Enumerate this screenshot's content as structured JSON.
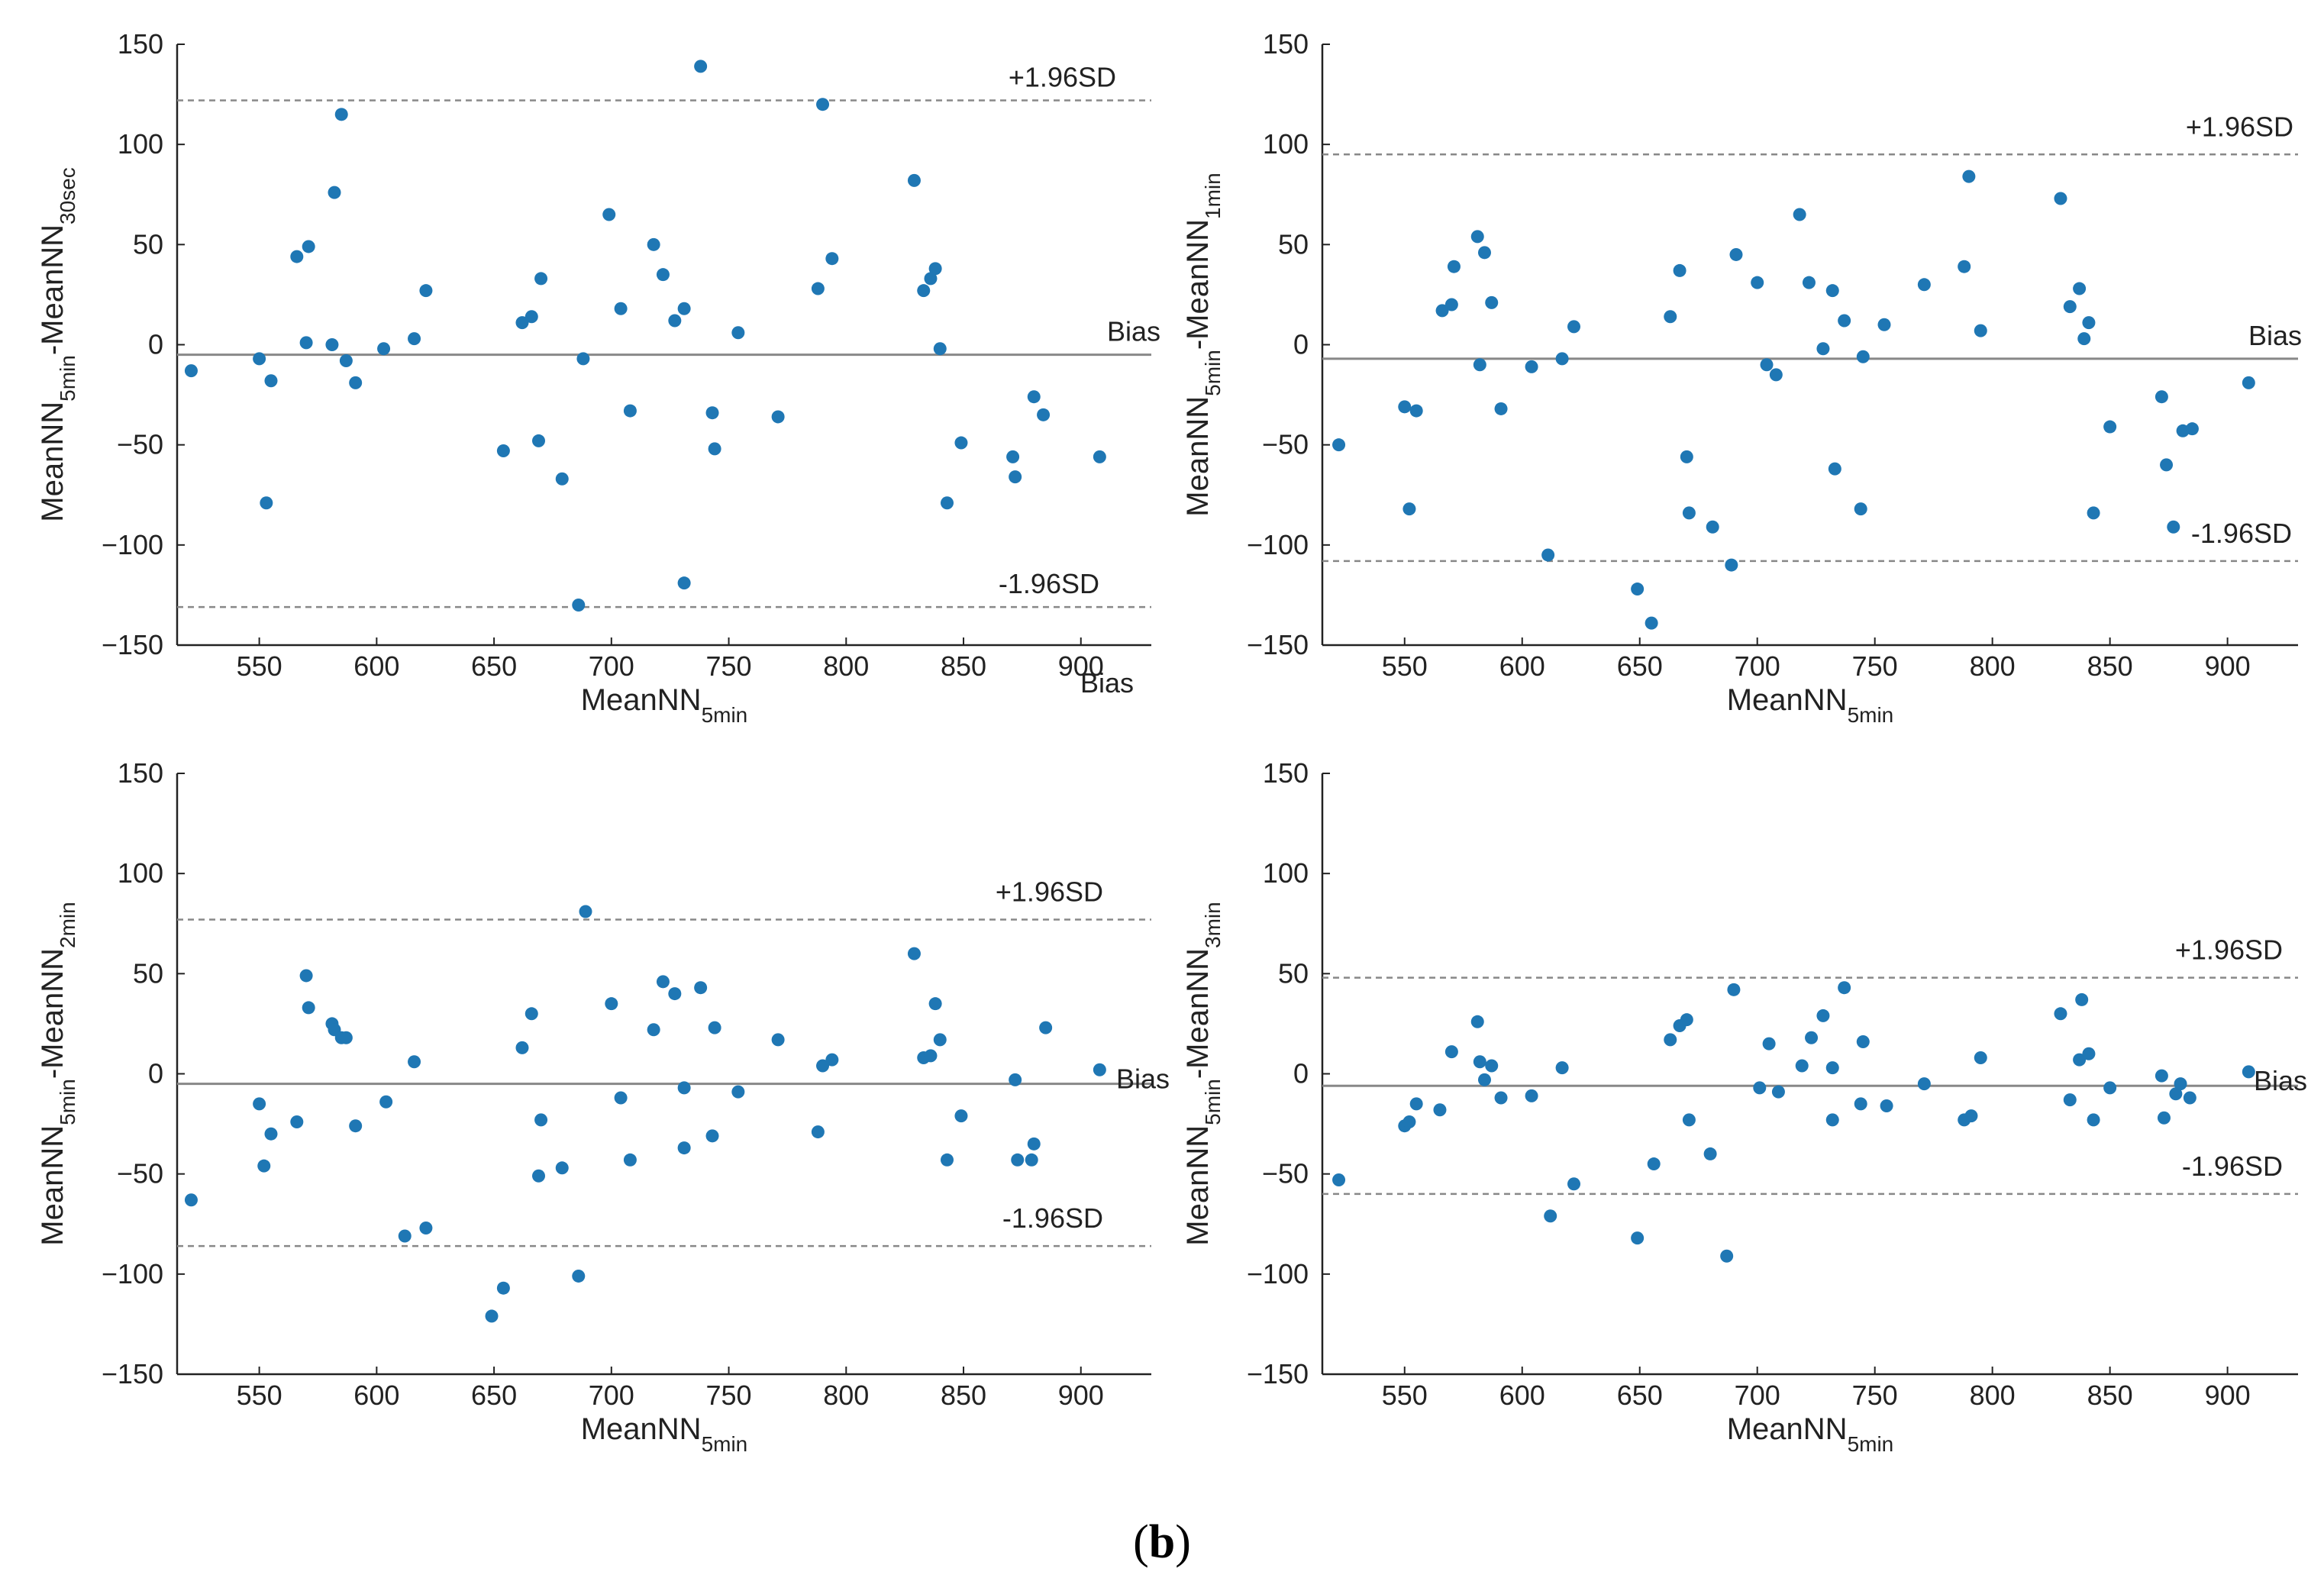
{
  "caption": {
    "open": "(",
    "letter": "b",
    "close": ")"
  },
  "colors": {
    "marker": "#1f77b4",
    "axis": "#222222",
    "bias_line": "#888888",
    "limit_line": "#888888"
  },
  "chart_data": [
    {
      "type": "scatter",
      "title": "",
      "xlabel": {
        "main": "MeanNN",
        "sub": "5min"
      },
      "ylabel": {
        "a": "MeanNN",
        "a_sub": "5min",
        "sep": "-",
        "b": "MeanNN",
        "b_sub": "30sec"
      },
      "xlim": [
        515,
        930
      ],
      "ylim": [
        -150,
        150
      ],
      "xticks": [
        "550",
        "600",
        "650",
        "700",
        "750",
        "800",
        "850",
        "900"
      ],
      "yticks": [
        "150",
        "100",
        "50",
        "0",
        "−50",
        "−100",
        "−150"
      ],
      "bias": -5,
      "upper": 122,
      "lower": -131,
      "upper_label": "+1.96SD",
      "lower_label": "-1.96SD",
      "bias_label": "Bias",
      "extra_label": "Bias",
      "points": [
        [
          521,
          -13
        ],
        [
          550,
          -7
        ],
        [
          553,
          -79
        ],
        [
          555,
          -18
        ],
        [
          566,
          44
        ],
        [
          570,
          1
        ],
        [
          571,
          49
        ],
        [
          581,
          0
        ],
        [
          582,
          76
        ],
        [
          585,
          115
        ],
        [
          587,
          -8
        ],
        [
          591,
          -19
        ],
        [
          603,
          -2
        ],
        [
          616,
          3
        ],
        [
          621,
          27
        ],
        [
          654,
          -53
        ],
        [
          662,
          11
        ],
        [
          666,
          14
        ],
        [
          669,
          -48
        ],
        [
          670,
          33
        ],
        [
          679,
          -67
        ],
        [
          686,
          -130
        ],
        [
          688,
          -7
        ],
        [
          699,
          65
        ],
        [
          704,
          18
        ],
        [
          708,
          -33
        ],
        [
          718,
          50
        ],
        [
          722,
          35
        ],
        [
          727,
          12
        ],
        [
          731,
          18
        ],
        [
          731,
          -119
        ],
        [
          738,
          139
        ],
        [
          743,
          -34
        ],
        [
          744,
          -52
        ],
        [
          754,
          6
        ],
        [
          771,
          -36
        ],
        [
          788,
          28
        ],
        [
          790,
          120
        ],
        [
          794,
          43
        ],
        [
          829,
          82
        ],
        [
          833,
          27
        ],
        [
          836,
          33
        ],
        [
          838,
          38
        ],
        [
          840,
          -2
        ],
        [
          843,
          -79
        ],
        [
          849,
          -49
        ],
        [
          871,
          -56
        ],
        [
          872,
          -66
        ],
        [
          880,
          -26
        ],
        [
          884,
          -35
        ],
        [
          908,
          -56
        ]
      ]
    },
    {
      "type": "scatter",
      "title": "",
      "xlabel": {
        "main": "MeanNN",
        "sub": "5min"
      },
      "ylabel": {
        "a": "MeanNN",
        "a_sub": "5min",
        "sep": "-",
        "b": "MeanNN",
        "b_sub": "1min"
      },
      "xlim": [
        515,
        930
      ],
      "ylim": [
        -150,
        150
      ],
      "xticks": [
        "550",
        "600",
        "650",
        "700",
        "750",
        "800",
        "850",
        "900"
      ],
      "yticks": [
        "150",
        "100",
        "50",
        "0",
        "−50",
        "−100",
        "−150"
      ],
      "bias": -7,
      "upper": 95,
      "lower": -108,
      "upper_label": "+1.96SD",
      "lower_label": "-1.96SD",
      "bias_label": "Bias",
      "points": [
        [
          522,
          -50
        ],
        [
          550,
          -31
        ],
        [
          552,
          -82
        ],
        [
          555,
          -33
        ],
        [
          566,
          17
        ],
        [
          570,
          20
        ],
        [
          571,
          39
        ],
        [
          581,
          54
        ],
        [
          582,
          -10
        ],
        [
          584,
          46
        ],
        [
          587,
          21
        ],
        [
          591,
          -32
        ],
        [
          604,
          -11
        ],
        [
          611,
          -105
        ],
        [
          617,
          -7
        ],
        [
          622,
          9
        ],
        [
          649,
          -122
        ],
        [
          655,
          -139
        ],
        [
          663,
          14
        ],
        [
          667,
          37
        ],
        [
          670,
          -56
        ],
        [
          671,
          -84
        ],
        [
          681,
          -91
        ],
        [
          689,
          -110
        ],
        [
          691,
          45
        ],
        [
          700,
          31
        ],
        [
          704,
          -10
        ],
        [
          708,
          -15
        ],
        [
          718,
          65
        ],
        [
          722,
          31
        ],
        [
          728,
          -2
        ],
        [
          732,
          27
        ],
        [
          733,
          -62
        ],
        [
          737,
          12
        ],
        [
          744,
          -82
        ],
        [
          745,
          -6
        ],
        [
          754,
          10
        ],
        [
          771,
          30
        ],
        [
          788,
          39
        ],
        [
          790,
          84
        ],
        [
          795,
          7
        ],
        [
          829,
          73
        ],
        [
          833,
          19
        ],
        [
          837,
          28
        ],
        [
          839,
          3
        ],
        [
          841,
          11
        ],
        [
          843,
          -84
        ],
        [
          850,
          -41
        ],
        [
          872,
          -26
        ],
        [
          874,
          -60
        ],
        [
          877,
          -91
        ],
        [
          881,
          -43
        ],
        [
          885,
          -42
        ],
        [
          909,
          -19
        ]
      ]
    },
    {
      "type": "scatter",
      "title": "",
      "xlabel": {
        "main": "MeanNN",
        "sub": "5min"
      },
      "ylabel": {
        "a": "MeanNN",
        "a_sub": "5min",
        "sep": "-",
        "b": "MeanNN",
        "b_sub": "2min"
      },
      "xlim": [
        515,
        930
      ],
      "ylim": [
        -150,
        150
      ],
      "xticks": [
        "550",
        "600",
        "650",
        "700",
        "750",
        "800",
        "850",
        "900"
      ],
      "yticks": [
        "150",
        "100",
        "50",
        "0",
        "−50",
        "−100",
        "−150"
      ],
      "bias": -5,
      "upper": 77,
      "lower": -86,
      "upper_label": "+1.96SD",
      "lower_label": "-1.96SD",
      "bias_label": "Bias",
      "points": [
        [
          521,
          -63
        ],
        [
          550,
          -15
        ],
        [
          552,
          -46
        ],
        [
          555,
          -30
        ],
        [
          566,
          -24
        ],
        [
          570,
          49
        ],
        [
          571,
          33
        ],
        [
          581,
          25
        ],
        [
          582,
          22
        ],
        [
          585,
          18
        ],
        [
          587,
          18
        ],
        [
          591,
          -26
        ],
        [
          604,
          -14
        ],
        [
          612,
          -81
        ],
        [
          616,
          6
        ],
        [
          621,
          -77
        ],
        [
          649,
          -121
        ],
        [
          654,
          -107
        ],
        [
          662,
          13
        ],
        [
          666,
          30
        ],
        [
          669,
          -51
        ],
        [
          670,
          -23
        ],
        [
          679,
          -47
        ],
        [
          686,
          -101
        ],
        [
          689,
          81
        ],
        [
          700,
          35
        ],
        [
          704,
          -12
        ],
        [
          708,
          -43
        ],
        [
          718,
          22
        ],
        [
          722,
          46
        ],
        [
          727,
          40
        ],
        [
          731,
          -7
        ],
        [
          731,
          -37
        ],
        [
          738,
          43
        ],
        [
          743,
          -31
        ],
        [
          744,
          23
        ],
        [
          754,
          -9
        ],
        [
          771,
          17
        ],
        [
          788,
          -29
        ],
        [
          790,
          4
        ],
        [
          794,
          7
        ],
        [
          829,
          60
        ],
        [
          833,
          8
        ],
        [
          836,
          9
        ],
        [
          838,
          35
        ],
        [
          840,
          17
        ],
        [
          843,
          -43
        ],
        [
          849,
          -21
        ],
        [
          872,
          -3
        ],
        [
          873,
          -43
        ],
        [
          880,
          -35
        ],
        [
          879,
          -43
        ],
        [
          885,
          23
        ],
        [
          908,
          2
        ]
      ]
    },
    {
      "type": "scatter",
      "title": "",
      "xlabel": {
        "main": "MeanNN",
        "sub": "5min"
      },
      "ylabel": {
        "a": "MeanNN",
        "a_sub": "5min",
        "sep": "-",
        "b": "MeanNN",
        "b_sub": "3min"
      },
      "xlim": [
        515,
        930
      ],
      "ylim": [
        -150,
        150
      ],
      "xticks": [
        "550",
        "600",
        "650",
        "700",
        "750",
        "800",
        "850",
        "900"
      ],
      "yticks": [
        "150",
        "100",
        "50",
        "0",
        "−50",
        "−100",
        "−150"
      ],
      "bias": -6,
      "upper": 48,
      "lower": -60,
      "upper_label": "+1.96SD",
      "lower_label": "-1.96SD",
      "bias_label": "Bias",
      "points": [
        [
          522,
          -53
        ],
        [
          550,
          -26
        ],
        [
          552,
          -24
        ],
        [
          555,
          -15
        ],
        [
          565,
          -18
        ],
        [
          570,
          11
        ],
        [
          581,
          26
        ],
        [
          582,
          6
        ],
        [
          584,
          -3
        ],
        [
          587,
          4
        ],
        [
          591,
          -12
        ],
        [
          604,
          -11
        ],
        [
          612,
          -71
        ],
        [
          617,
          3
        ],
        [
          622,
          -55
        ],
        [
          649,
          -82
        ],
        [
          656,
          -45
        ],
        [
          663,
          17
        ],
        [
          667,
          24
        ],
        [
          670,
          27
        ],
        [
          671,
          -23
        ],
        [
          680,
          -40
        ],
        [
          687,
          -91
        ],
        [
          690,
          42
        ],
        [
          701,
          -7
        ],
        [
          705,
          15
        ],
        [
          709,
          -9
        ],
        [
          719,
          4
        ],
        [
          723,
          18
        ],
        [
          728,
          29
        ],
        [
          732,
          3
        ],
        [
          732,
          -23
        ],
        [
          737,
          43
        ],
        [
          744,
          -15
        ],
        [
          745,
          16
        ],
        [
          755,
          -16
        ],
        [
          771,
          -5
        ],
        [
          788,
          -23
        ],
        [
          791,
          -21
        ],
        [
          795,
          8
        ],
        [
          829,
          30
        ],
        [
          833,
          -13
        ],
        [
          837,
          7
        ],
        [
          838,
          37
        ],
        [
          841,
          10
        ],
        [
          843,
          -23
        ],
        [
          850,
          -7
        ],
        [
          872,
          -1
        ],
        [
          873,
          -22
        ],
        [
          878,
          -10
        ],
        [
          880,
          -5
        ],
        [
          884,
          -12
        ],
        [
          909,
          1
        ]
      ]
    }
  ]
}
